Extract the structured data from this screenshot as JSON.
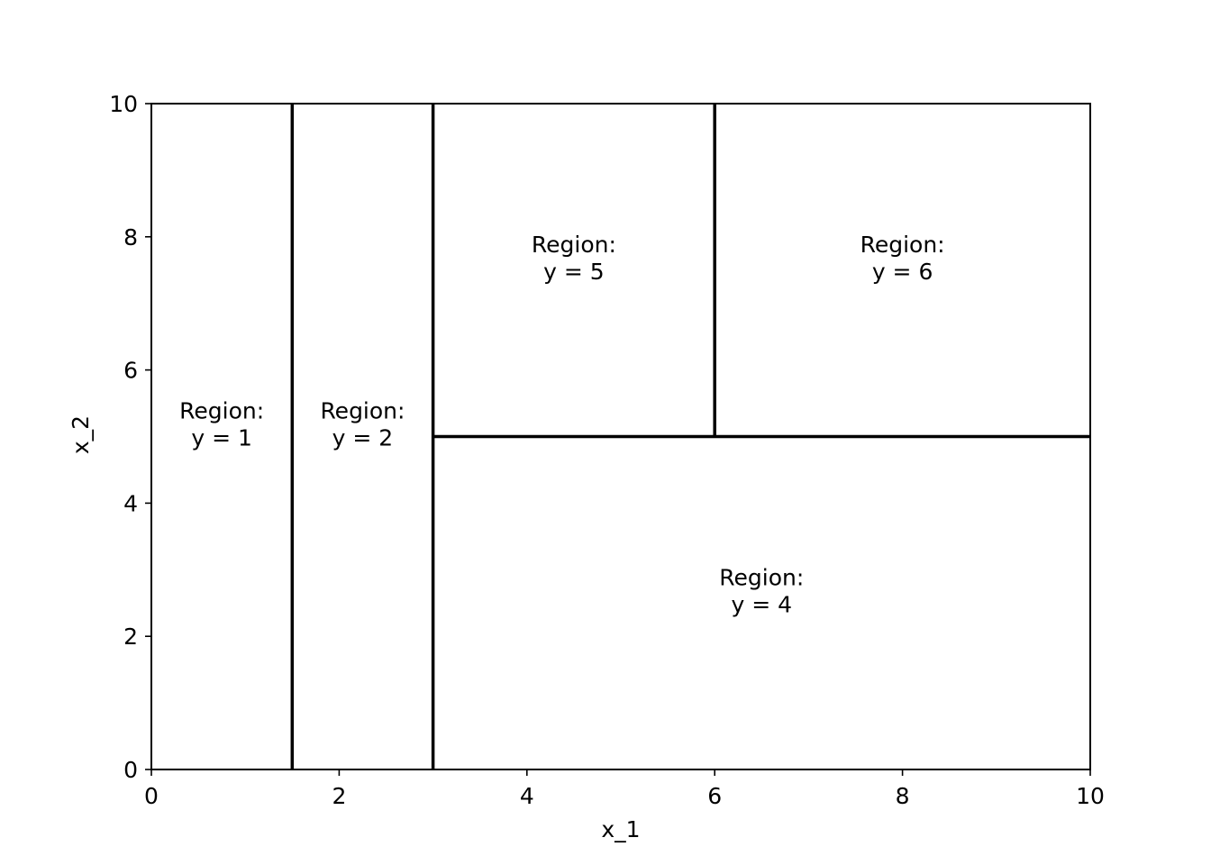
{
  "chart_data": {
    "type": "diagram",
    "title": "",
    "xlabel": "x_1",
    "ylabel": "x_2",
    "xlim": [
      0,
      10
    ],
    "ylim": [
      0,
      10
    ],
    "x_ticks": [
      0,
      2,
      4,
      6,
      8,
      10
    ],
    "y_ticks": [
      0,
      2,
      4,
      6,
      8,
      10
    ],
    "grid": false,
    "split_lines": [
      {
        "id": "split-x1-1.5",
        "x": [
          1.5,
          1.5
        ],
        "y": [
          0,
          10
        ]
      },
      {
        "id": "split-x1-3",
        "x": [
          3,
          3
        ],
        "y": [
          0,
          10
        ]
      },
      {
        "id": "split-x2-5",
        "x": [
          3,
          10
        ],
        "y": [
          5,
          5
        ]
      },
      {
        "id": "split-x1-6",
        "x": [
          6,
          6
        ],
        "y": [
          5,
          10
        ]
      }
    ],
    "regions": [
      {
        "id": "region-1",
        "line1": "Region:",
        "line2": "y = 1",
        "x": 0.75,
        "y": 5
      },
      {
        "id": "region-2",
        "line1": "Region:",
        "line2": "y = 2",
        "x": 2.25,
        "y": 5
      },
      {
        "id": "region-4",
        "line1": "Region:",
        "line2": "y = 4",
        "x": 6.5,
        "y": 2.5
      },
      {
        "id": "region-5",
        "line1": "Region:",
        "line2": "y = 5",
        "x": 4.5,
        "y": 7.5
      },
      {
        "id": "region-6",
        "line1": "Region:",
        "line2": "y = 6",
        "x": 8,
        "y": 7.5
      }
    ]
  }
}
